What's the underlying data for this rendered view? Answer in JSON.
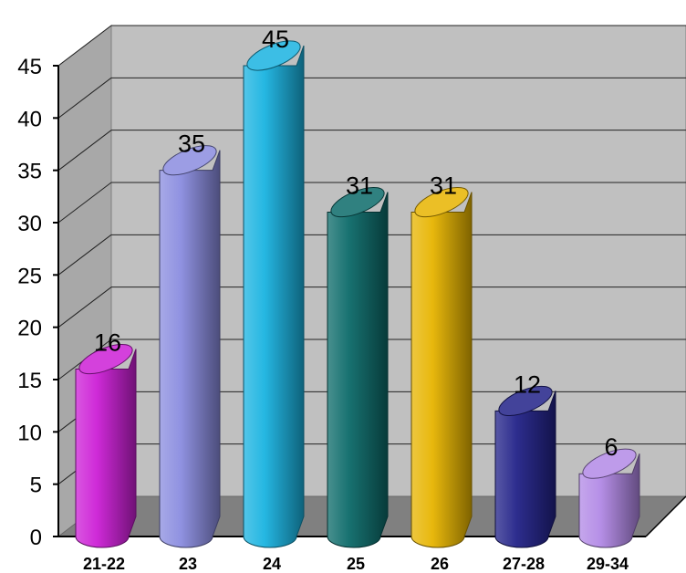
{
  "chart_data": {
    "type": "bar",
    "style": "3d-cylinder",
    "categories": [
      "21-22",
      "23",
      "24",
      "25",
      "26",
      "27-28",
      "29-34"
    ],
    "values": [
      16,
      35,
      45,
      31,
      31,
      12,
      6
    ],
    "ylim": [
      0,
      45
    ],
    "yticks": [
      "0",
      "5",
      "10",
      "15",
      "20",
      "25",
      "30",
      "35",
      "40",
      "45"
    ],
    "grid": true,
    "legend": "none",
    "colors": [
      "#cc1fd6",
      "#8a8cdf",
      "#19b3e0",
      "#0c6b6a",
      "#e7b400",
      "#222288",
      "#b289e6"
    ]
  }
}
